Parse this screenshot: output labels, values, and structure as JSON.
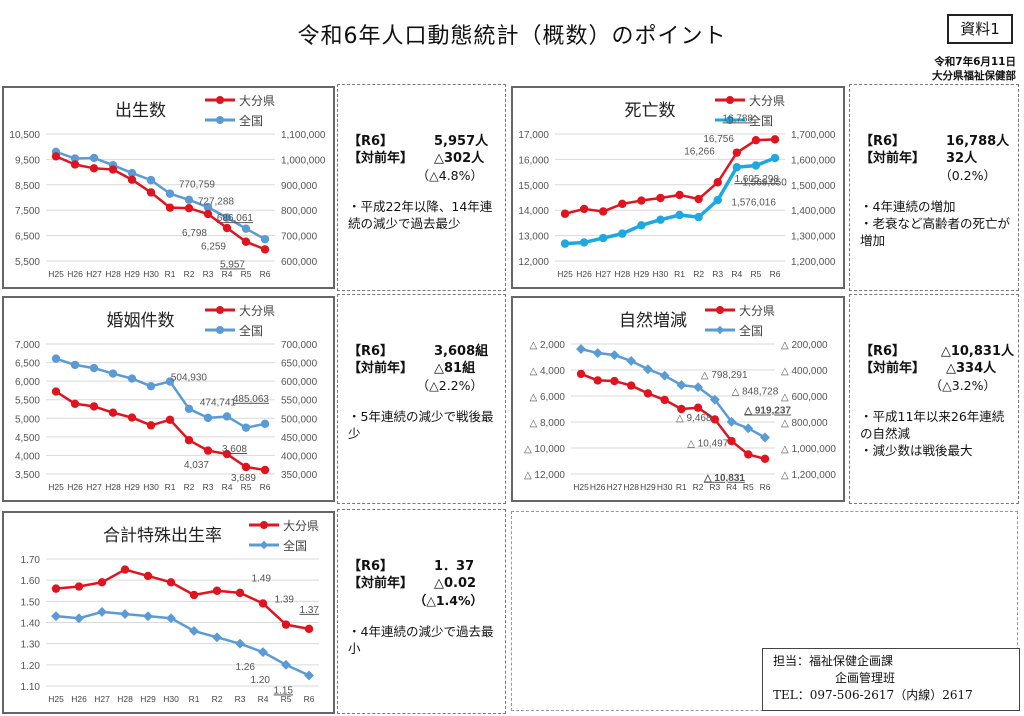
{
  "header": {
    "title": "令和6年人口動態統計（概数）のポイント",
    "badge": "資料1",
    "date": "令和7年6月11日",
    "department": "大分県福祉保健部"
  },
  "legend": {
    "oita": "大分県",
    "national": "全国"
  },
  "colors": {
    "oita": "#e0141e",
    "national": "#5b9bd5",
    "national_deaths": "#1ea8e0"
  },
  "chart_data": [
    {
      "id": "births",
      "type": "line",
      "title": "出生数",
      "categories": [
        "H25",
        "H26",
        "H27",
        "H28",
        "H29",
        "H30",
        "R1",
        "R2",
        "R3",
        "R4",
        "R5",
        "R6"
      ],
      "left_axis": {
        "min": 5500,
        "max": 10500,
        "ticks": [
          "5,500",
          "6,500",
          "7,500",
          "8,500",
          "9,500",
          "10,500"
        ]
      },
      "right_axis": {
        "min": 600000,
        "max": 1100000,
        "ticks": [
          "600,000",
          "700,000",
          "800,000",
          "900,000",
          "1,000,000",
          "1,100,000"
        ]
      },
      "grid": true,
      "legend_position": "top-right",
      "series": [
        {
          "name": "大分県",
          "axis": "left",
          "marker": "circle",
          "values": [
            9620,
            9300,
            9150,
            9100,
            8700,
            8200,
            7600,
            7580,
            7350,
            6798,
            6259,
            5957
          ],
          "labels": [
            {
              "index": 9,
              "text": "6,798"
            },
            {
              "index": 10,
              "text": "6,259"
            },
            {
              "index": 11,
              "text": "5,957",
              "underline": true
            }
          ]
        },
        {
          "name": "全国",
          "axis": "right",
          "marker": "circle",
          "values": [
            1029816,
            1003539,
            1005721,
            977242,
            946146,
            918400,
            865239,
            840835,
            811622,
            770759,
            727288,
            686061
          ],
          "labels": [
            {
              "index": 9,
              "text": "770,759"
            },
            {
              "index": 10,
              "text": "727,288"
            },
            {
              "index": 11,
              "text": "686,061",
              "underline": true
            }
          ]
        }
      ]
    },
    {
      "id": "deaths",
      "type": "line",
      "title": "死亡数",
      "categories": [
        "H25",
        "H26",
        "H27",
        "H28",
        "H29",
        "H30",
        "R1",
        "R2",
        "R3",
        "R4",
        "R5",
        "R6"
      ],
      "left_axis": {
        "min": 12000,
        "max": 17000,
        "ticks": [
          "12,000",
          "13,000",
          "14,000",
          "15,000",
          "16,000",
          "17,000"
        ]
      },
      "right_axis": {
        "min": 1200000,
        "max": 1700000,
        "ticks": [
          "1,200,000",
          "1,300,000",
          "1,400,000",
          "1,500,000",
          "1,600,000",
          "1,700,000"
        ]
      },
      "grid": true,
      "legend_position": "top-right",
      "series": [
        {
          "name": "大分県",
          "axis": "left",
          "marker": "circle",
          "values": [
            13860,
            14050,
            13950,
            14250,
            14380,
            14480,
            14600,
            14440,
            15100,
            16266,
            16756,
            16788
          ],
          "labels": [
            {
              "index": 9,
              "text": "16,266"
            },
            {
              "index": 10,
              "text": "16,756"
            },
            {
              "index": 11,
              "text": "16,788",
              "underline": true
            }
          ]
        },
        {
          "name": "全国",
          "axis": "right",
          "marker": "circle",
          "values": [
            1268436,
            1273004,
            1290444,
            1307748,
            1340397,
            1362470,
            1381093,
            1372755,
            1439856,
            1569050,
            1576016,
            1605298
          ],
          "labels": [
            {
              "index": 9,
              "text": "1,569,050"
            },
            {
              "index": 10,
              "text": "1,576,016"
            },
            {
              "index": 11,
              "text": "1,605,298",
              "underline": true
            }
          ]
        }
      ]
    },
    {
      "id": "marriages",
      "type": "line",
      "title": "婚姻件数",
      "categories": [
        "H25",
        "H26",
        "H27",
        "H28",
        "H29",
        "H30",
        "R1",
        "R2",
        "R3",
        "R4",
        "R5",
        "R6"
      ],
      "left_axis": {
        "min": 3500,
        "max": 7000,
        "ticks": [
          "3,500",
          "4,000",
          "4,500",
          "5,000",
          "5,500",
          "6,000",
          "6,500",
          "7,000"
        ]
      },
      "right_axis": {
        "min": 350000,
        "max": 700000,
        "ticks": [
          "350,000",
          "400,000",
          "450,000",
          "500,000",
          "550,000",
          "600,000",
          "650,000",
          "700,000"
        ]
      },
      "grid": true,
      "legend_position": "top-right",
      "series": [
        {
          "name": "大分県",
          "axis": "left",
          "marker": "circle",
          "values": [
            5720,
            5390,
            5320,
            5150,
            5020,
            4810,
            4960,
            4410,
            4130,
            4037,
            3689,
            3608
          ],
          "labels": [
            {
              "index": 9,
              "text": "4,037"
            },
            {
              "index": 10,
              "text": "3,689"
            },
            {
              "index": 11,
              "text": "3,608",
              "underline": true
            }
          ]
        },
        {
          "name": "全国",
          "axis": "right",
          "marker": "circle",
          "values": [
            660613,
            643749,
            635156,
            620531,
            606866,
            586481,
            599007,
            525507,
            501138,
            504930,
            474741,
            485063
          ],
          "labels": [
            {
              "index": 9,
              "text": "504,930"
            },
            {
              "index": 10,
              "text": "474,741"
            },
            {
              "index": 11,
              "text": "485,063",
              "underline": true
            }
          ]
        }
      ]
    },
    {
      "id": "natural_change",
      "type": "line",
      "title": "自然増減",
      "categories": [
        "H25",
        "H26",
        "H27",
        "H28",
        "H29",
        "H30",
        "R1",
        "R2",
        "R3",
        "R4",
        "R5",
        "R6"
      ],
      "left_axis": {
        "min": -12000,
        "max": -2000,
        "ticks": [
          "△ 12,000",
          "△ 10,000",
          "△ 8,000",
          "△ 6,000",
          "△ 4,000",
          "△ 2,000"
        ]
      },
      "right_axis": {
        "min": -1200000,
        "max": -200000,
        "ticks": [
          "△ 1,200,000",
          "△ 1,000,000",
          "△ 800,000",
          "△ 600,000",
          "△ 400,000",
          "△ 200,000"
        ]
      },
      "grid": true,
      "legend_position": "top-right",
      "series": [
        {
          "name": "大分県",
          "axis": "left",
          "marker": "circle",
          "values": [
            -4300,
            -4800,
            -4850,
            -5200,
            -5800,
            -6300,
            -7000,
            -6900,
            -7800,
            -9468,
            -10497,
            -10831
          ],
          "labels": [
            {
              "index": 9,
              "text": "△ 9,468"
            },
            {
              "index": 10,
              "text": "△ 10,497"
            },
            {
              "index": 11,
              "text": "△ 10,831",
              "underline": true
            }
          ]
        },
        {
          "name": "全国",
          "axis": "right",
          "marker": "diamond",
          "values": [
            -238620,
            -269465,
            -284767,
            -330505,
            -394251,
            -444085,
            -515854,
            -531912,
            -628234,
            -798291,
            -848728,
            -919237
          ],
          "labels": [
            {
              "index": 9,
              "text": "△ 798,291"
            },
            {
              "index": 10,
              "text": "△ 848,728"
            },
            {
              "index": 11,
              "text": "△ 919,237",
              "underline": true
            }
          ]
        }
      ]
    },
    {
      "id": "tfr",
      "type": "line",
      "title": "合計特殊出生率",
      "categories": [
        "H25",
        "H26",
        "H27",
        "H28",
        "H29",
        "H30",
        "R1",
        "R2",
        "R3",
        "R4",
        "R5",
        "R6"
      ],
      "left_axis": {
        "min": 1.1,
        "max": 1.7,
        "ticks": [
          "1.10",
          "1.20",
          "1.30",
          "1.40",
          "1.50",
          "1.60",
          "1.70"
        ]
      },
      "grid": true,
      "legend_position": "top-right",
      "series": [
        {
          "name": "大分県",
          "axis": "left",
          "marker": "circle",
          "values": [
            1.56,
            1.57,
            1.59,
            1.65,
            1.62,
            1.59,
            1.53,
            1.55,
            1.54,
            1.49,
            1.39,
            1.37
          ],
          "labels": [
            {
              "index": 9,
              "text": "1.49"
            },
            {
              "index": 10,
              "text": "1.39"
            },
            {
              "index": 11,
              "text": "1.37",
              "underline": true
            }
          ]
        },
        {
          "name": "全国",
          "axis": "left",
          "marker": "diamond",
          "values": [
            1.43,
            1.42,
            1.45,
            1.44,
            1.43,
            1.42,
            1.36,
            1.33,
            1.3,
            1.26,
            1.2,
            1.15
          ],
          "labels": [
            {
              "index": 9,
              "text": "1.26"
            },
            {
              "index": 10,
              "text": "1.20"
            },
            {
              "index": 11,
              "text": "1.15",
              "underline": true
            }
          ]
        }
      ]
    }
  ],
  "notes": {
    "births": {
      "r6_key": "【R6】",
      "r6_val": "5,957人",
      "yoy_key": "【対前年】",
      "yoy_val": "△302人",
      "pct": "（△4.8%）",
      "bullets": [
        "・平成22年以降、14年連続の減少で過去最少"
      ]
    },
    "deaths": {
      "r6_key": "【R6】",
      "r6_val": "16,788人",
      "yoy_key": "【対前年】",
      "yoy_val": "32人",
      "pct": "（0.2%）",
      "bullets": [
        "・4年連続の増加",
        "・老衰など高齢者の死亡が増加"
      ]
    },
    "marriages": {
      "r6_key": "【R6】",
      "r6_val": "3,608組",
      "yoy_key": "【対前年】",
      "yoy_val": "△81組",
      "pct": "（△2.2%）",
      "bullets": [
        "・5年連続の減少で戦後最少"
      ]
    },
    "natural_change": {
      "r6_key": "【R6】",
      "r6_val": "△10,831人",
      "yoy_key": "【対前年】",
      "yoy_val": "△334人",
      "pct": "（△3.2%）",
      "bullets": [
        "・平成11年以来26年連続の自然減",
        "・減少数は戦後最大"
      ]
    },
    "tfr": {
      "r6_key": "【R6】",
      "r6_val": "1．37",
      "yoy_key": "【対前年】",
      "yoy_val": "△0.02",
      "pct": "（△1.4%）",
      "bullets": [
        "・4年連続の減少で過去最小"
      ]
    }
  },
  "contact": {
    "line1": "担当：福祉保健企画課",
    "line2": "企画管理班",
    "line3": "TEL：097-506-2617（内線）2617"
  }
}
